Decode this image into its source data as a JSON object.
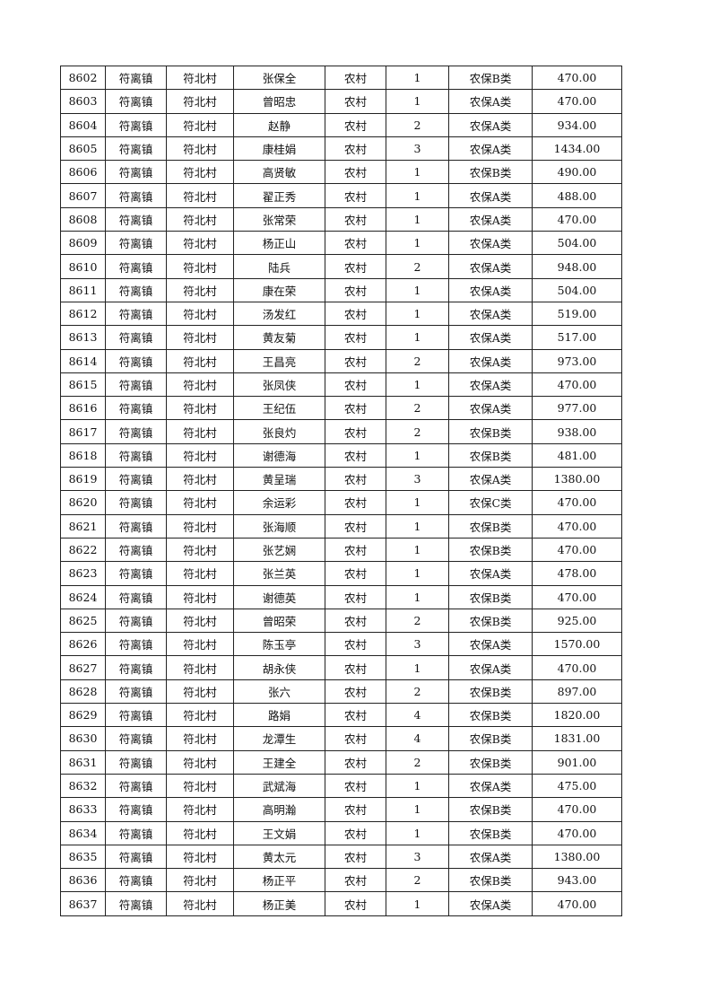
{
  "table": {
    "rows": [
      [
        "8602",
        "符离镇",
        "符北村",
        "张保全",
        "农村",
        "1",
        "农保B类",
        "470.00"
      ],
      [
        "8603",
        "符离镇",
        "符北村",
        "曾昭忠",
        "农村",
        "1",
        "农保A类",
        "470.00"
      ],
      [
        "8604",
        "符离镇",
        "符北村",
        "赵静",
        "农村",
        "2",
        "农保A类",
        "934.00"
      ],
      [
        "8605",
        "符离镇",
        "符北村",
        "康桂娟",
        "农村",
        "3",
        "农保A类",
        "1434.00"
      ],
      [
        "8606",
        "符离镇",
        "符北村",
        "高贤敏",
        "农村",
        "1",
        "农保B类",
        "490.00"
      ],
      [
        "8607",
        "符离镇",
        "符北村",
        "翟正秀",
        "农村",
        "1",
        "农保A类",
        "488.00"
      ],
      [
        "8608",
        "符离镇",
        "符北村",
        "张常荣",
        "农村",
        "1",
        "农保A类",
        "470.00"
      ],
      [
        "8609",
        "符离镇",
        "符北村",
        "杨正山",
        "农村",
        "1",
        "农保A类",
        "504.00"
      ],
      [
        "8610",
        "符离镇",
        "符北村",
        "陆兵",
        "农村",
        "2",
        "农保A类",
        "948.00"
      ],
      [
        "8611",
        "符离镇",
        "符北村",
        "康在荣",
        "农村",
        "1",
        "农保A类",
        "504.00"
      ],
      [
        "8612",
        "符离镇",
        "符北村",
        "汤发红",
        "农村",
        "1",
        "农保A类",
        "519.00"
      ],
      [
        "8613",
        "符离镇",
        "符北村",
        "黄友菊",
        "农村",
        "1",
        "农保A类",
        "517.00"
      ],
      [
        "8614",
        "符离镇",
        "符北村",
        "王昌亮",
        "农村",
        "2",
        "农保A类",
        "973.00"
      ],
      [
        "8615",
        "符离镇",
        "符北村",
        "张凤侠",
        "农村",
        "1",
        "农保A类",
        "470.00"
      ],
      [
        "8616",
        "符离镇",
        "符北村",
        "王纪伍",
        "农村",
        "2",
        "农保A类",
        "977.00"
      ],
      [
        "8617",
        "符离镇",
        "符北村",
        "张良灼",
        "农村",
        "2",
        "农保B类",
        "938.00"
      ],
      [
        "8618",
        "符离镇",
        "符北村",
        "谢德海",
        "农村",
        "1",
        "农保B类",
        "481.00"
      ],
      [
        "8619",
        "符离镇",
        "符北村",
        "黄呈瑞",
        "农村",
        "3",
        "农保A类",
        "1380.00"
      ],
      [
        "8620",
        "符离镇",
        "符北村",
        "余运彩",
        "农村",
        "1",
        "农保C类",
        "470.00"
      ],
      [
        "8621",
        "符离镇",
        "符北村",
        "张海顺",
        "农村",
        "1",
        "农保B类",
        "470.00"
      ],
      [
        "8622",
        "符离镇",
        "符北村",
        "张艺娴",
        "农村",
        "1",
        "农保B类",
        "470.00"
      ],
      [
        "8623",
        "符离镇",
        "符北村",
        "张兰英",
        "农村",
        "1",
        "农保A类",
        "478.00"
      ],
      [
        "8624",
        "符离镇",
        "符北村",
        "谢德英",
        "农村",
        "1",
        "农保B类",
        "470.00"
      ],
      [
        "8625",
        "符离镇",
        "符北村",
        "曾昭荣",
        "农村",
        "2",
        "农保B类",
        "925.00"
      ],
      [
        "8626",
        "符离镇",
        "符北村",
        "陈玉亭",
        "农村",
        "3",
        "农保A类",
        "1570.00"
      ],
      [
        "8627",
        "符离镇",
        "符北村",
        "胡永侠",
        "农村",
        "1",
        "农保A类",
        "470.00"
      ],
      [
        "8628",
        "符离镇",
        "符北村",
        "张六",
        "农村",
        "2",
        "农保B类",
        "897.00"
      ],
      [
        "8629",
        "符离镇",
        "符北村",
        "路娟",
        "农村",
        "4",
        "农保B类",
        "1820.00"
      ],
      [
        "8630",
        "符离镇",
        "符北村",
        "龙潭生",
        "农村",
        "4",
        "农保B类",
        "1831.00"
      ],
      [
        "8631",
        "符离镇",
        "符北村",
        "王建全",
        "农村",
        "2",
        "农保B类",
        "901.00"
      ],
      [
        "8632",
        "符离镇",
        "符北村",
        "武斌海",
        "农村",
        "1",
        "农保A类",
        "475.00"
      ],
      [
        "8633",
        "符离镇",
        "符北村",
        "高明瀚",
        "农村",
        "1",
        "农保B类",
        "470.00"
      ],
      [
        "8634",
        "符离镇",
        "符北村",
        "王文娟",
        "农村",
        "1",
        "农保B类",
        "470.00"
      ],
      [
        "8635",
        "符离镇",
        "符北村",
        "黄太元",
        "农村",
        "3",
        "农保A类",
        "1380.00"
      ],
      [
        "8636",
        "符离镇",
        "符北村",
        "杨正平",
        "农村",
        "2",
        "农保B类",
        "943.00"
      ],
      [
        "8637",
        "符离镇",
        "符北村",
        "杨正美",
        "农村",
        "1",
        "农保A类",
        "470.00"
      ]
    ]
  }
}
